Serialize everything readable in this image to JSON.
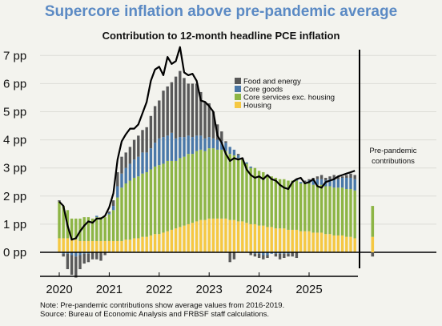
{
  "chart_data": {
    "type": "bar",
    "title": "Supercore inflation above pre-pandemic average",
    "subtitle": "Contribution to 12-month headline PCE inflation",
    "y_tick_labels": [
      "0 pp",
      "1 pp",
      "2 pp",
      "3 pp",
      "4 pp",
      "5 pp",
      "6 pp",
      "7 pp"
    ],
    "x_tick_labels": [
      "2020",
      "2021",
      "2022",
      "2023",
      "2024",
      "2025"
    ],
    "ylim": [
      -0.8,
      7.2
    ],
    "grid": true,
    "legend_position": "top-center",
    "start_month": "2020-01",
    "series": [
      {
        "name": "Food and energy",
        "color": "#595959",
        "values": [
          0.05,
          -0.1,
          -0.55,
          -0.7,
          -0.75,
          -0.5,
          -0.35,
          -0.3,
          -0.25,
          -0.25,
          -0.3,
          -0.1,
          0.05,
          0.2,
          0.5,
          0.6,
          0.55,
          0.6,
          0.7,
          0.75,
          0.8,
          0.9,
          1.15,
          1.3,
          1.35,
          1.65,
          1.75,
          1.8,
          2.2,
          2.35,
          2.1,
          1.85,
          1.9,
          1.85,
          1.55,
          1.3,
          1.2,
          0.95,
          0.55,
          0.35,
          0.05,
          -0.35,
          -0.25,
          0.05,
          0.05,
          0.0,
          -0.1,
          -0.1,
          -0.15,
          -0.15,
          -0.1,
          0.0,
          -0.1,
          -0.2,
          -0.15,
          -0.1,
          -0.15,
          -0.2,
          0.0,
          0.05,
          0.05,
          0.1,
          0.1,
          0.15,
          0.1,
          0.1,
          0.15,
          0.1,
          0.05,
          0.1,
          0.15,
          0.15
        ]
      },
      {
        "name": "Core goods",
        "color": "#4a78a8",
        "values": [
          0.0,
          -0.05,
          -0.05,
          -0.1,
          -0.15,
          -0.1,
          -0.05,
          -0.05,
          0.0,
          0.05,
          0.0,
          0.0,
          0.05,
          0.15,
          0.4,
          0.5,
          0.55,
          0.6,
          0.65,
          0.7,
          0.75,
          0.7,
          0.75,
          0.85,
          0.95,
          0.95,
          0.9,
          1.0,
          0.8,
          0.75,
          0.7,
          0.65,
          0.6,
          0.55,
          0.5,
          0.45,
          0.4,
          0.35,
          0.35,
          0.3,
          0.3,
          0.25,
          0.2,
          0.1,
          0.0,
          0.05,
          0.05,
          -0.05,
          -0.05,
          -0.1,
          -0.1,
          -0.05,
          -0.05,
          -0.05,
          -0.05,
          -0.05,
          0.0,
          0.05,
          0.05,
          0.05,
          0.1,
          0.15,
          0.2,
          0.2,
          0.2,
          0.25,
          0.3,
          0.3,
          0.35,
          0.4,
          0.4,
          0.4
        ]
      },
      {
        "name": "Core services exc. housing",
        "color": "#8db545",
        "values": [
          1.3,
          1.15,
          1.0,
          0.75,
          0.75,
          0.8,
          0.85,
          0.85,
          0.8,
          0.85,
          0.85,
          0.85,
          0.95,
          1.1,
          1.55,
          1.9,
          2.0,
          2.1,
          2.15,
          2.2,
          2.25,
          2.3,
          2.35,
          2.4,
          2.45,
          2.45,
          2.5,
          2.45,
          2.4,
          2.45,
          2.45,
          2.5,
          2.45,
          2.5,
          2.5,
          2.45,
          2.5,
          2.5,
          2.45,
          2.45,
          2.4,
          2.35,
          2.3,
          2.25,
          2.2,
          2.1,
          2.0,
          2.0,
          1.95,
          1.9,
          1.85,
          1.8,
          1.8,
          1.75,
          1.75,
          1.75,
          1.75,
          1.75,
          1.7,
          1.7,
          1.7,
          1.7,
          1.7,
          1.7,
          1.7,
          1.7,
          1.7,
          1.7,
          1.7,
          1.7,
          1.7,
          1.7
        ]
      },
      {
        "name": "Housing",
        "color": "#f5c842",
        "values": [
          0.5,
          0.5,
          0.5,
          0.45,
          0.45,
          0.4,
          0.4,
          0.4,
          0.4,
          0.4,
          0.4,
          0.4,
          0.4,
          0.4,
          0.4,
          0.4,
          0.45,
          0.45,
          0.5,
          0.5,
          0.55,
          0.55,
          0.6,
          0.65,
          0.65,
          0.7,
          0.75,
          0.8,
          0.85,
          0.9,
          0.95,
          1.0,
          1.05,
          1.1,
          1.15,
          1.15,
          1.2,
          1.2,
          1.2,
          1.2,
          1.2,
          1.15,
          1.15,
          1.1,
          1.1,
          1.05,
          1.0,
          1.0,
          0.95,
          0.95,
          0.9,
          0.9,
          0.85,
          0.85,
          0.85,
          0.8,
          0.8,
          0.8,
          0.75,
          0.75,
          0.75,
          0.7,
          0.7,
          0.7,
          0.65,
          0.65,
          0.6,
          0.6,
          0.6,
          0.55,
          0.55,
          0.5
        ]
      }
    ],
    "headline_line": [
      1.8,
      1.65,
      0.95,
      0.45,
      0.5,
      0.75,
      0.95,
      1.1,
      1.05,
      1.2,
      1.2,
      1.3,
      1.6,
      2.1,
      3.3,
      3.95,
      4.2,
      4.4,
      4.4,
      4.55,
      4.95,
      5.35,
      6.1,
      6.5,
      6.6,
      6.3,
      6.95,
      6.7,
      6.8,
      7.3,
      6.4,
      6.3,
      6.35,
      6.1,
      5.4,
      5.35,
      5.2,
      5.0,
      4.15,
      3.9,
      3.5,
      3.25,
      3.35,
      3.3,
      3.35,
      2.95,
      2.75,
      2.65,
      2.7,
      2.6,
      2.75,
      2.6,
      2.55,
      2.4,
      2.3,
      2.25,
      2.5,
      2.6,
      2.65,
      2.45,
      2.5,
      2.6,
      2.35,
      2.3,
      2.5,
      2.55,
      2.6,
      2.7,
      2.75,
      2.8,
      2.85,
      2.9
    ],
    "pre_pandemic": {
      "label_line1": "Pre-pandemic",
      "label_line2": "contributions",
      "values": [
        -0.15,
        0.0,
        1.1,
        0.55
      ]
    }
  },
  "notes": {
    "line1": "Note: Pre-pandemic contributions show average values from 2016-2019.",
    "line2": "Source: Bureau of Economic Analysis and FRBSF staff calculations."
  }
}
